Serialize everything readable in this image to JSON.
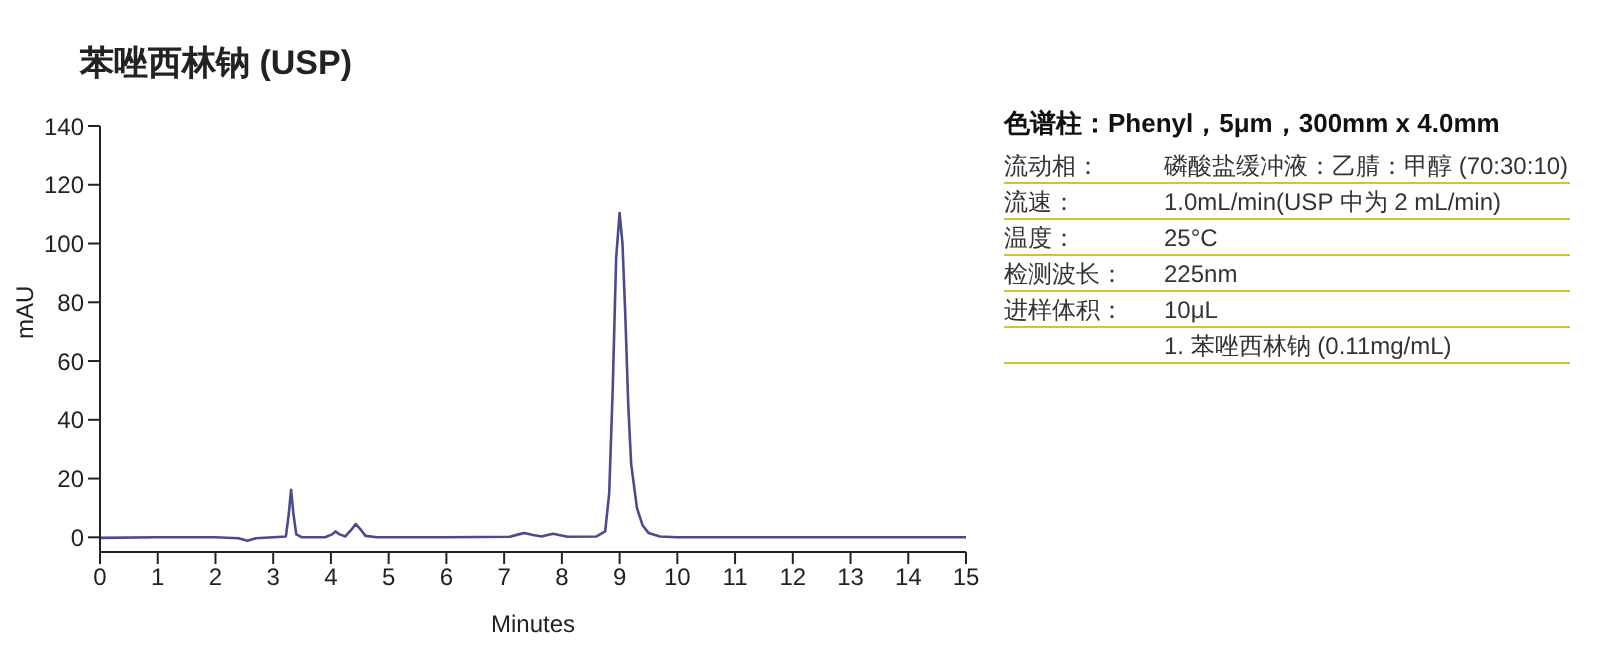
{
  "chart_data": {
    "type": "line",
    "title": "苯唑西林钠 (USP)",
    "xlabel": "Minutes",
    "ylabel": "mAU",
    "x": [
      0,
      1,
      2,
      2.4,
      2.55,
      2.7,
      3.0,
      3.22,
      3.27,
      3.31,
      3.35,
      3.4,
      3.5,
      3.9,
      4.02,
      4.08,
      4.15,
      4.25,
      4.35,
      4.43,
      4.52,
      4.6,
      4.8,
      6,
      7.1,
      7.25,
      7.35,
      7.5,
      7.65,
      7.75,
      7.85,
      7.95,
      8.1,
      8.6,
      8.75,
      8.82,
      8.88,
      8.94,
      9.0,
      9.05,
      9.1,
      9.15,
      9.2,
      9.3,
      9.4,
      9.5,
      9.7,
      10,
      12,
      15
    ],
    "series": [
      {
        "color": "#4b4b8c",
        "values": [
          -0.2,
          0,
          0,
          -0.3,
          -1.2,
          -0.3,
          0,
          0.3,
          8,
          16.2,
          8,
          1,
          0,
          0,
          1,
          2,
          1,
          0.3,
          2.5,
          4.5,
          2.5,
          0.5,
          0,
          0,
          0.2,
          1,
          1.5,
          0.8,
          0.3,
          0.8,
          1.2,
          0.8,
          0.2,
          0.3,
          2,
          15,
          50,
          95,
          110.4,
          100,
          75,
          45,
          25,
          10,
          4,
          1.5,
          0.3,
          0,
          0,
          0
        ]
      }
    ],
    "xlim": [
      0,
      15
    ],
    "xticks": [
      0,
      1,
      2,
      3,
      4,
      5,
      6,
      7,
      8,
      9,
      10,
      11,
      12,
      13,
      14,
      15
    ],
    "ylim": [
      -5,
      140
    ],
    "yticks": [
      0,
      20,
      40,
      60,
      80,
      100,
      120,
      140
    ],
    "grid": false,
    "legend": false,
    "marker": "none",
    "line_style": "solid",
    "annotations": [
      "色谱柱：Phenyl，5μm，300mm x 4.0mm",
      "流动相：",
      "磷酸盐缓冲液：乙腈：甲醇 (70:30:10)",
      "流速：",
      "1.0mL/min(USP 中为 2 mL/min)",
      "温度：",
      "25°C",
      "检测波长：",
      "225nm",
      "进样体积：",
      "10μL",
      "1. 苯唑西林钠 (0.11mg/mL)"
    ]
  }
}
